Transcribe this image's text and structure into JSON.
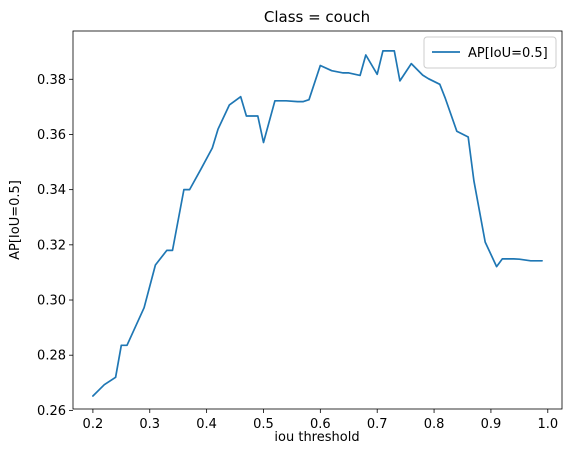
{
  "chart_data": {
    "type": "line",
    "title": "Class = couch",
    "xlabel": "iou threshold",
    "ylabel": "AP[IoU=0.5]",
    "xlim": [
      0.165,
      1.025
    ],
    "ylim": [
      0.2605,
      0.3975
    ],
    "xticks": [
      0.2,
      0.3,
      0.4,
      0.5,
      0.6,
      0.7,
      0.8,
      0.9,
      1.0
    ],
    "xtick_labels": [
      "0.2",
      "0.3",
      "0.4",
      "0.5",
      "0.6",
      "0.7",
      "0.8",
      "0.9",
      "1.0"
    ],
    "yticks": [
      0.26,
      0.28,
      0.3,
      0.32,
      0.34,
      0.36,
      0.38
    ],
    "ytick_labels": [
      "0.26",
      "0.28",
      "0.30",
      "0.32",
      "0.34",
      "0.36",
      "0.38"
    ],
    "grid": false,
    "legend_position": "top-right",
    "series": [
      {
        "name": "AP[IoU=0.5]",
        "color": "#1f77b4",
        "x": [
          0.2,
          0.22,
          0.24,
          0.25,
          0.26,
          0.29,
          0.31,
          0.33,
          0.34,
          0.36,
          0.37,
          0.39,
          0.41,
          0.42,
          0.44,
          0.46,
          0.47,
          0.49,
          0.5,
          0.52,
          0.54,
          0.56,
          0.57,
          0.58,
          0.6,
          0.62,
          0.64,
          0.65,
          0.67,
          0.68,
          0.7,
          0.71,
          0.73,
          0.74,
          0.76,
          0.78,
          0.79,
          0.81,
          0.82,
          0.84,
          0.86,
          0.87,
          0.89,
          0.91,
          0.92,
          0.94,
          0.95,
          0.97,
          0.98,
          0.99
        ],
        "values": [
          0.2652,
          0.2693,
          0.272,
          0.2836,
          0.2836,
          0.2972,
          0.3127,
          0.318,
          0.318,
          0.34,
          0.34,
          0.3474,
          0.3551,
          0.3619,
          0.3707,
          0.3737,
          0.3667,
          0.3667,
          0.3571,
          0.3722,
          0.3722,
          0.3719,
          0.3719,
          0.3726,
          0.385,
          0.3831,
          0.3823,
          0.3823,
          0.3814,
          0.3888,
          0.3818,
          0.3903,
          0.3903,
          0.3794,
          0.3857,
          0.3815,
          0.3802,
          0.3782,
          0.373,
          0.3612,
          0.3591,
          0.3432,
          0.321,
          0.3121,
          0.3149,
          0.3149,
          0.3148,
          0.3142,
          0.3142,
          0.3142
        ]
      }
    ]
  }
}
